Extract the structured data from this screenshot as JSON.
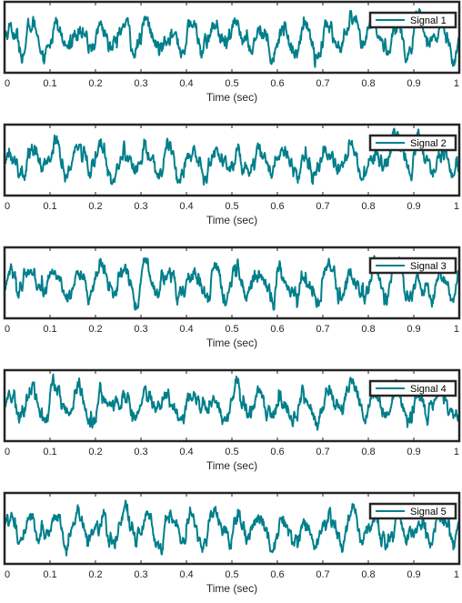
{
  "figure": {
    "line_color": "#007F8B",
    "axes_color": "#262626",
    "background": "#ffffff"
  },
  "chart_data": [
    {
      "type": "line",
      "xlabel": "Time (sec)",
      "ylabel": "",
      "xlim": [
        0,
        1
      ],
      "ylim": [
        -3,
        3
      ],
      "xticks": [
        "0",
        "0.1",
        "0.2",
        "0.3",
        "0.4",
        "0.5",
        "0.6",
        "0.7",
        "0.8",
        "0.9",
        "1"
      ],
      "grid": false,
      "legend_position": "top-right",
      "series": [
        {
          "name": "Signal 1",
          "signal": "sinusoid ~20 Hz, amplitude ~1 plus noise",
          "base_frequency_hz": 20,
          "amplitude": 1.0,
          "noise_std": 0.3
        }
      ]
    },
    {
      "type": "line",
      "xlabel": "Time (sec)",
      "ylabel": "",
      "xlim": [
        0,
        1
      ],
      "ylim": [
        -3,
        3
      ],
      "xticks": [
        "0",
        "0.1",
        "0.2",
        "0.3",
        "0.4",
        "0.5",
        "0.6",
        "0.7",
        "0.8",
        "0.9",
        "1"
      ],
      "grid": false,
      "legend_position": "top-right",
      "series": [
        {
          "name": "Signal 2",
          "signal": "sinusoid ~20 Hz, amplitude ~1 plus noise",
          "base_frequency_hz": 20,
          "amplitude": 1.0,
          "noise_std": 0.3
        }
      ]
    },
    {
      "type": "line",
      "xlabel": "Time (sec)",
      "ylabel": "",
      "xlim": [
        0,
        1
      ],
      "ylim": [
        -3,
        3
      ],
      "xticks": [
        "0",
        "0.1",
        "0.2",
        "0.3",
        "0.4",
        "0.5",
        "0.6",
        "0.7",
        "0.8",
        "0.9",
        "1"
      ],
      "grid": false,
      "legend_position": "top-right",
      "series": [
        {
          "name": "Signal 3",
          "signal": "sinusoid ~20 Hz, amplitude ~1 plus noise",
          "base_frequency_hz": 20,
          "amplitude": 1.0,
          "noise_std": 0.3
        }
      ]
    },
    {
      "type": "line",
      "xlabel": "Time (sec)",
      "ylabel": "",
      "xlim": [
        0,
        1
      ],
      "ylim": [
        -3,
        3
      ],
      "xticks": [
        "0",
        "0.1",
        "0.2",
        "0.3",
        "0.4",
        "0.5",
        "0.6",
        "0.7",
        "0.8",
        "0.9",
        "1"
      ],
      "grid": false,
      "legend_position": "top-right",
      "series": [
        {
          "name": "Signal 4",
          "signal": "sinusoid ~20 Hz, amplitude ~1 plus noise",
          "base_frequency_hz": 20,
          "amplitude": 1.0,
          "noise_std": 0.3
        }
      ]
    },
    {
      "type": "line",
      "xlabel": "Time (sec)",
      "ylabel": "",
      "xlim": [
        0,
        1
      ],
      "ylim": [
        -3,
        3
      ],
      "xticks": [
        "0",
        "0.1",
        "0.2",
        "0.3",
        "0.4",
        "0.5",
        "0.6",
        "0.7",
        "0.8",
        "0.9",
        "1"
      ],
      "grid": false,
      "legend_position": "top-right",
      "series": [
        {
          "name": "Signal 5",
          "signal": "sinusoid ~20 Hz, amplitude ~1 plus noise",
          "base_frequency_hz": 20,
          "amplitude": 1.0,
          "noise_std": 0.3
        }
      ]
    }
  ]
}
